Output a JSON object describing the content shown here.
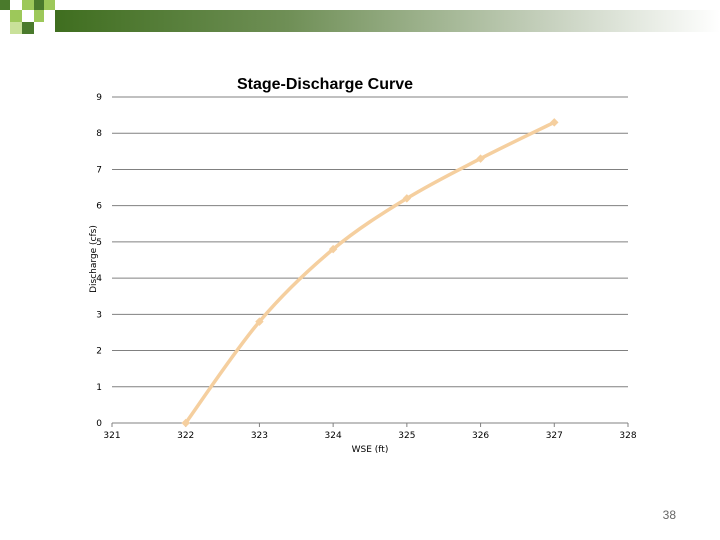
{
  "slide": {
    "page_number": "38",
    "accent_color": "#4a7a2c",
    "accent_light": "#9dc85a"
  },
  "chart_data": {
    "type": "line",
    "title": "Stage-Discharge Curve",
    "xlabel": "WSE (ft)",
    "ylabel": "Discharge (cfs)",
    "xlim": [
      321,
      328
    ],
    "ylim": [
      0,
      9
    ],
    "x_ticks": [
      "321",
      "322",
      "323",
      "324",
      "325",
      "326",
      "327",
      "328"
    ],
    "y_ticks": [
      "0",
      "1",
      "2",
      "3",
      "4",
      "5",
      "6",
      "7",
      "8",
      "9"
    ],
    "grid": "horizontal",
    "line_color": "#f5cf9f",
    "series": [
      {
        "x": [
          322,
          323,
          324,
          325,
          326,
          327
        ],
        "values": [
          0,
          2.8,
          4.8,
          6.2,
          7.3,
          8.3
        ]
      }
    ]
  }
}
